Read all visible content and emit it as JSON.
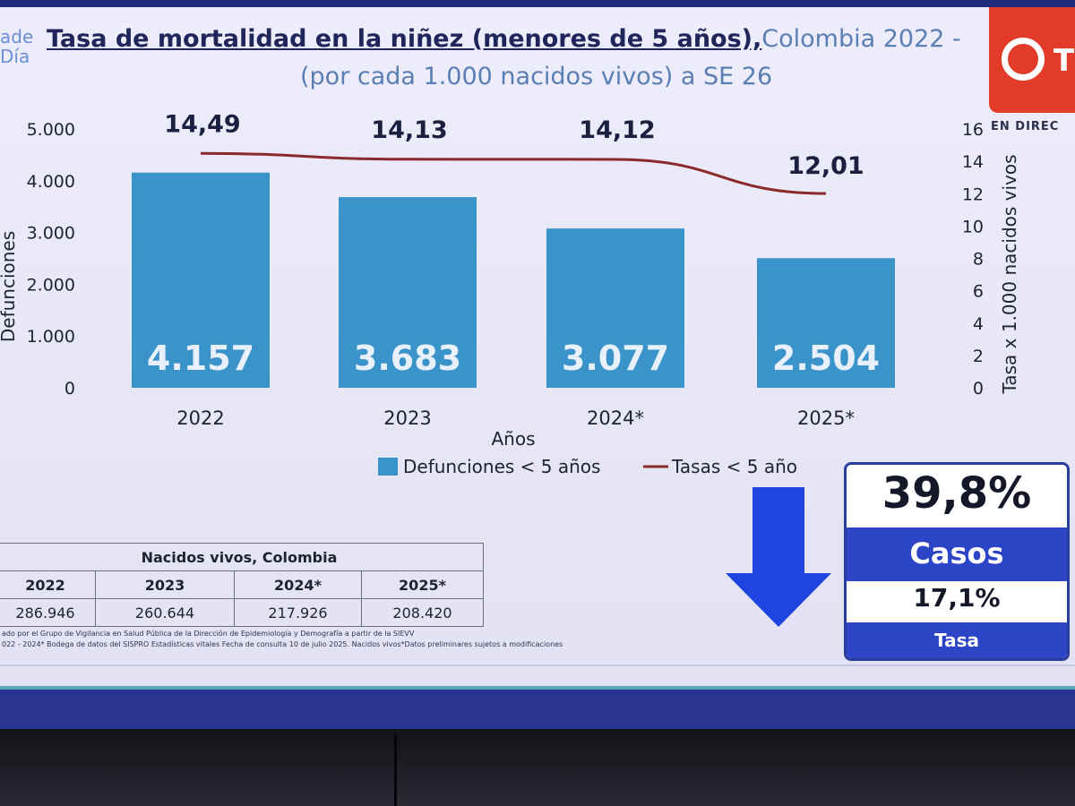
{
  "title": {
    "main": "Tasa de mortalidad en la niñez (menores de 5 años),",
    "region": "Colombia 2022 -",
    "line2": "(por cada 1.000 nacidos vivos) a SE 26"
  },
  "brand": {
    "left_logo_text": "ade\nDía",
    "right_logo_letter": "T",
    "live_badge": "EN DIREC"
  },
  "chart_data": {
    "type": "bar",
    "categories": [
      "2022",
      "2023",
      "2024*",
      "2025*"
    ],
    "xlabel": "Años",
    "ylabel": "Defunciones",
    "y2label": "Tasa x 1.000 nacidos vivos",
    "ylim": [
      0,
      5000
    ],
    "y2lim": [
      0,
      16
    ],
    "yticks": [
      "0",
      "1.000",
      "2.000",
      "3.000",
      "4.000",
      "5.000"
    ],
    "y2ticks": [
      "0",
      "2",
      "4",
      "6",
      "8",
      "10",
      "12",
      "14",
      "16"
    ],
    "series": [
      {
        "name": "Defunciones < 5 años",
        "type": "bar",
        "axis": "left",
        "values": [
          4157,
          3683,
          3077,
          2504
        ],
        "labels": [
          "4.157",
          "3.683",
          "3.077",
          "2.504"
        ]
      },
      {
        "name": "Tasas < 5 año",
        "type": "line",
        "axis": "right",
        "values": [
          14.49,
          14.13,
          14.12,
          12.01
        ],
        "labels": [
          "14,49",
          "14,13",
          "14,12",
          "12,01"
        ]
      }
    ],
    "legend_position": "bottom",
    "colors": {
      "bar": "#3a93c9",
      "line": "#8a2a2a"
    }
  },
  "births_table": {
    "title": "Nacidos vivos, Colombia",
    "years": [
      "2022",
      "2023",
      "2024*",
      "2025*"
    ],
    "values": [
      "286.946",
      "260.644",
      "217.926",
      "208.420"
    ]
  },
  "note": {
    "line1": "ado por el Grupo de Vigilancia en Salud Pública de la Dirección de Epidemiología y Demografía a partir de la SIEVV",
    "line2": "022 - 2024* Bodega de datos del SISPRO Estadísticas vitales Fecha de consulta 10 de julio 2025. Nacidos vivos*Datos preliminares sujetos a modificaciones"
  },
  "kpi": {
    "cases_change": "39,8%",
    "cases_label": "Casos",
    "rate_change": "17,1%",
    "rate_label": "Tasa",
    "colors": {
      "accent": "#2c44c6",
      "arrow": "#1f45e0"
    }
  }
}
